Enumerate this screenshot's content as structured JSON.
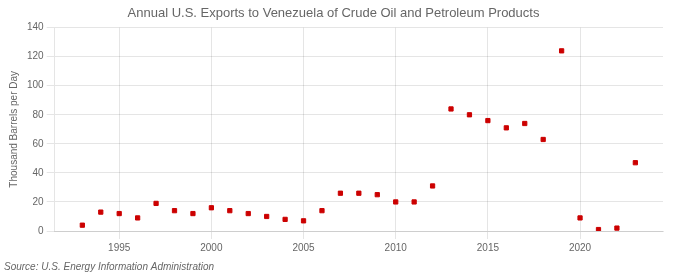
{
  "chart_data": {
    "type": "scatter",
    "title": "Annual U.S. Exports to Venezuela of Crude Oil and Petroleum Products",
    "y_label": "Thousand Barrels per Day",
    "annotations": [
      "Source: U.S. Energy Information Administration"
    ],
    "x": [
      1993,
      1994,
      1995,
      1996,
      1997,
      1998,
      1999,
      2000,
      2001,
      2002,
      2003,
      2004,
      2005,
      2006,
      2007,
      2008,
      2009,
      2010,
      2011,
      2012,
      2013,
      2014,
      2015,
      2016,
      2017,
      2018,
      2019,
      2020,
      2021,
      2022,
      2023
    ],
    "values": [
      4,
      13,
      12,
      9,
      19,
      14,
      12,
      16,
      14,
      12,
      10,
      8,
      7,
      14,
      26,
      26,
      25,
      20,
      20,
      31,
      84,
      80,
      76,
      71,
      74,
      63,
      124,
      9,
      1,
      2,
      47
    ],
    "color": "#cc0000",
    "marker": "square",
    "xlim": [
      1991.5,
      2024.5
    ],
    "xticks": [
      1995,
      2000,
      2005,
      2010,
      2015,
      2020
    ],
    "ylim": [
      0,
      140
    ],
    "yticks": [
      0,
      20,
      40,
      60,
      80,
      100,
      120,
      140
    ],
    "grid": true
  }
}
